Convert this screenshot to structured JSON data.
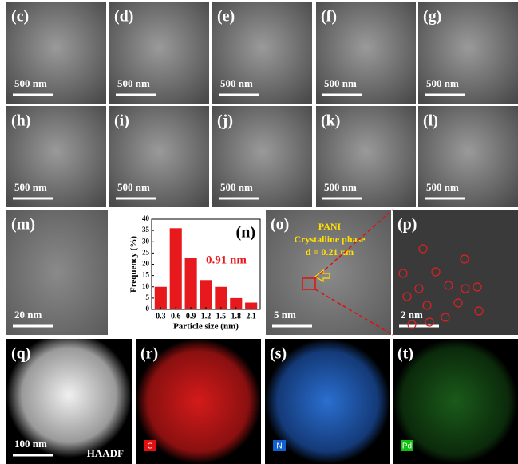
{
  "panels": [
    {
      "label": "(c)",
      "scale_bar": "500 nm"
    },
    {
      "label": "(d)",
      "scale_bar": "500 nm"
    },
    {
      "label": "(e)",
      "scale_bar": "500 nm"
    },
    {
      "label": "(f)",
      "scale_bar": "500 nm"
    },
    {
      "label": "(g)",
      "scale_bar": "500 nm"
    },
    {
      "label": "(h)",
      "scale_bar": "500 nm"
    },
    {
      "label": "(i)",
      "scale_bar": "500 nm"
    },
    {
      "label": "(j)",
      "scale_bar": "500 nm"
    },
    {
      "label": "(k)",
      "scale_bar": "500 nm"
    },
    {
      "label": "(l)",
      "scale_bar": "500 nm"
    },
    {
      "label": "(m)",
      "scale_bar": "20 nm"
    },
    {
      "label": "(o)",
      "scale_bar": "5 nm",
      "annotations": [
        "PANI",
        "Crystalline phase",
        "d = 0.21 nm"
      ]
    },
    {
      "label": "(p)",
      "scale_bar": "2 nm"
    },
    {
      "label": "(q)",
      "scale_bar": "100 nm",
      "signal": "HAADF"
    },
    {
      "label": "(r)",
      "element": "C"
    },
    {
      "label": "(s)",
      "element": "N"
    },
    {
      "label": "(t)",
      "element": "Pd"
    }
  ],
  "chart_data": {
    "type": "bar",
    "label": "(n)",
    "annotation": "0.91 nm",
    "x_label": "Particle size (nm)",
    "y_label": "Frequency (%)",
    "x": [
      0.3,
      0.6,
      0.9,
      1.2,
      1.5,
      1.8,
      2.1
    ],
    "values": [
      10,
      36,
      23,
      13,
      10,
      5,
      3
    ],
    "color": "#e8191c",
    "xlim": [
      0.12,
      2.28
    ],
    "xticks": [
      0.3,
      0.6,
      0.9,
      1.2,
      1.5,
      1.8,
      2.1
    ],
    "ylim": [
      0,
      40
    ],
    "yticks": [
      0,
      5,
      10,
      15,
      20,
      25,
      30,
      35,
      40
    ]
  }
}
